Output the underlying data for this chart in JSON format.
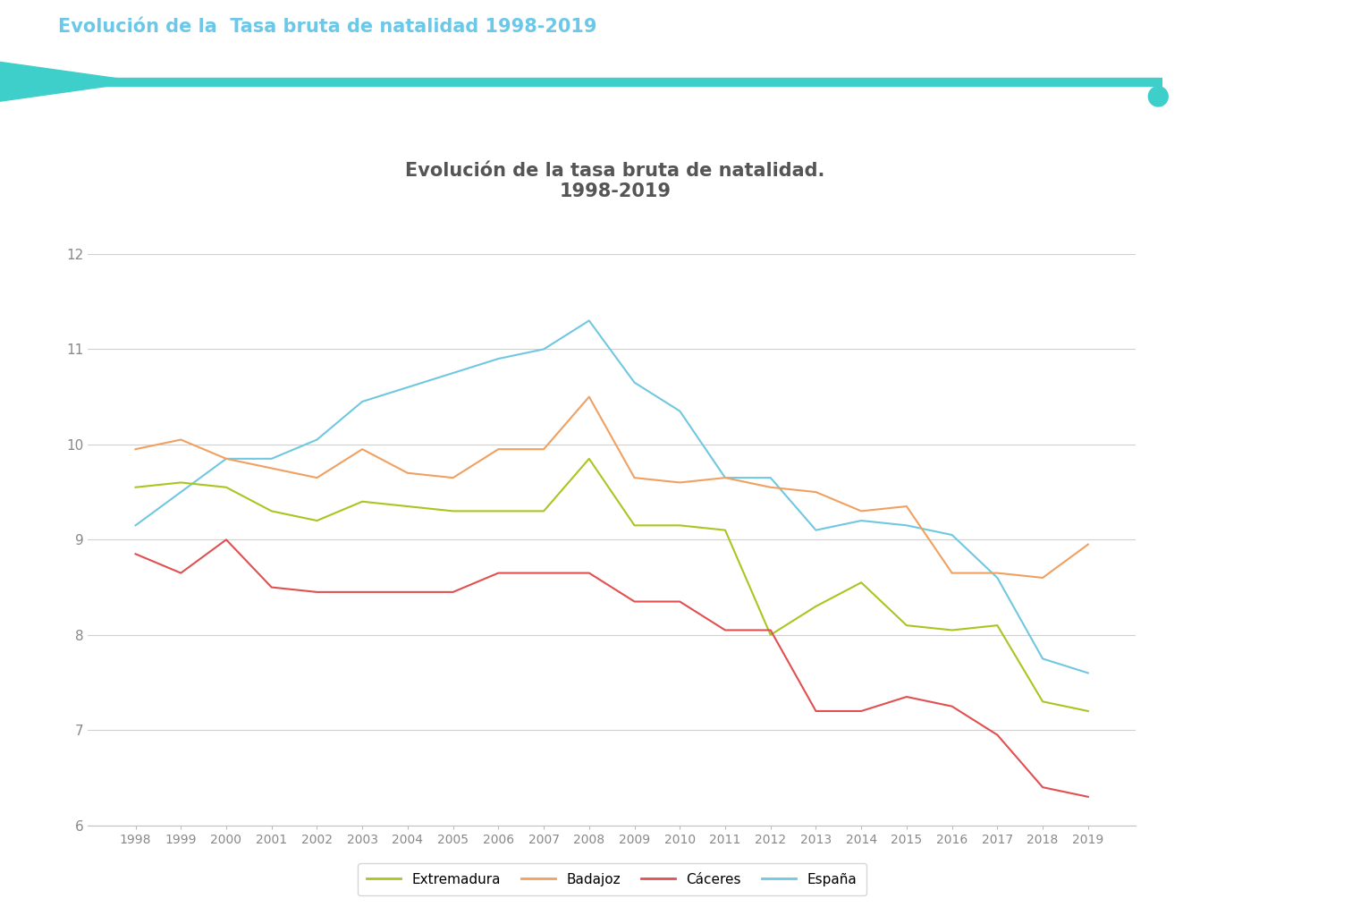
{
  "title_main": "Evolución de la tasa bruta de natalidad.\n1998-2019",
  "header_text": "Evolución de la  Tasa bruta de natalidad 1998-2019",
  "years": [
    1998,
    1999,
    2000,
    2001,
    2002,
    2003,
    2004,
    2005,
    2006,
    2007,
    2008,
    2009,
    2010,
    2011,
    2012,
    2013,
    2014,
    2015,
    2016,
    2017,
    2018,
    2019
  ],
  "extremadura": [
    9.55,
    9.6,
    9.55,
    9.3,
    9.2,
    9.4,
    9.35,
    9.3,
    9.3,
    9.3,
    9.85,
    9.15,
    9.15,
    9.1,
    8.0,
    8.3,
    8.55,
    8.1,
    8.05,
    8.1,
    7.3,
    7.2
  ],
  "badajoz": [
    9.95,
    10.05,
    9.85,
    9.75,
    9.65,
    9.95,
    9.7,
    9.65,
    9.95,
    9.95,
    10.5,
    9.65,
    9.6,
    9.65,
    9.55,
    9.5,
    9.3,
    9.35,
    8.65,
    8.65,
    8.6,
    8.95
  ],
  "caceres": [
    8.85,
    8.65,
    9.0,
    8.5,
    8.45,
    8.45,
    8.45,
    8.45,
    8.65,
    8.65,
    8.65,
    8.35,
    8.35,
    8.05,
    8.05,
    7.2,
    7.2,
    7.35,
    7.25,
    6.95,
    6.4,
    6.3
  ],
  "espana": [
    9.15,
    9.5,
    9.85,
    9.85,
    10.05,
    10.45,
    10.6,
    10.75,
    10.9,
    11.0,
    11.3,
    10.65,
    10.35,
    9.65,
    9.65,
    9.1,
    9.2,
    9.15,
    9.05,
    8.6,
    7.75,
    7.6
  ],
  "color_extremadura": "#aac520",
  "color_badajoz": "#f0a060",
  "color_caceres": "#e05050",
  "color_espana": "#70c8e0",
  "ylim": [
    6,
    12
  ],
  "yticks": [
    6,
    7,
    8,
    9,
    10,
    11,
    12
  ],
  "header_color": "#6cc8e8",
  "arrow_color": "#3ecfca",
  "dot_color": "#3ecfca",
  "background_color": "#ffffff",
  "title_color": "#555555",
  "deco_color": "#e0f4f8"
}
